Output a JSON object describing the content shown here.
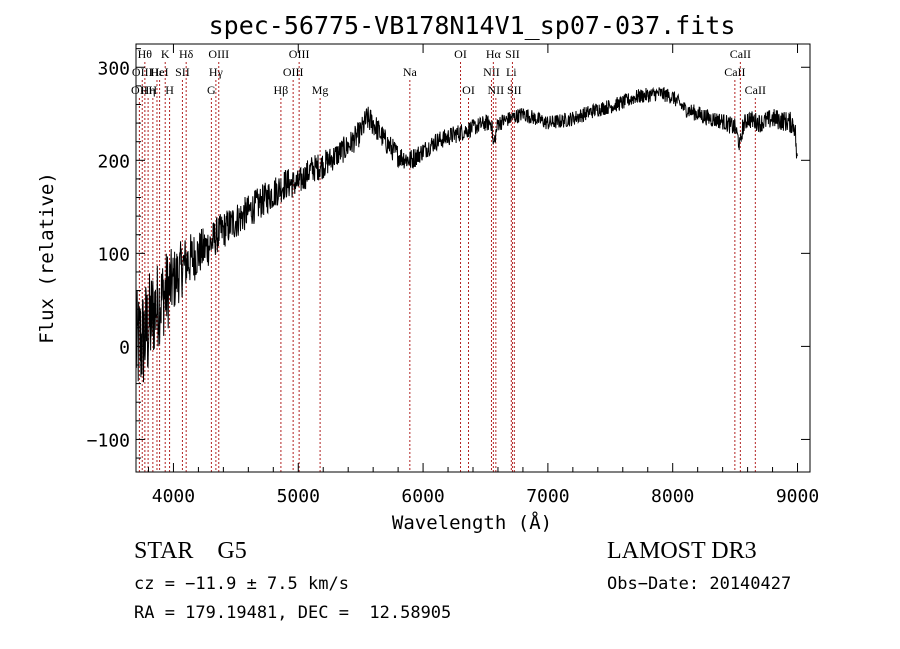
{
  "chart_data": {
    "type": "line",
    "title": "spec-56775-VB178N14V1_sp07-037.fits",
    "xlabel": "Wavelength (Å)",
    "ylabel": "Flux (relative)",
    "xlim": [
      3700,
      9100
    ],
    "ylim": [
      -135,
      325
    ],
    "x_ticks": [
      4000,
      5000,
      6000,
      7000,
      8000,
      9000
    ],
    "x_tick_labels": [
      "4000",
      "5000",
      "6000",
      "7000",
      "8000",
      "9000"
    ],
    "y_ticks": [
      -100,
      0,
      100,
      200,
      300
    ],
    "y_tick_labels": [
      "−100",
      "0",
      "100",
      "200",
      "300"
    ],
    "series": [
      {
        "name": "flux",
        "color": "#000000",
        "x": [
          3700,
          3750,
          3800,
          3850,
          3900,
          3950,
          4000,
          4050,
          4100,
          4150,
          4200,
          4250,
          4300,
          4350,
          4400,
          4450,
          4500,
          4600,
          4700,
          4800,
          4850,
          4900,
          5000,
          5100,
          5200,
          5300,
          5400,
          5500,
          5550,
          5600,
          5650,
          5700,
          5800,
          5900,
          6000,
          6100,
          6200,
          6300,
          6400,
          6500,
          6550,
          6563,
          6600,
          6700,
          6800,
          6900,
          7000,
          7100,
          7200,
          7300,
          7400,
          7500,
          7600,
          7700,
          7800,
          7900,
          8000,
          8100,
          8200,
          8300,
          8400,
          8500,
          8540,
          8560,
          8600,
          8700,
          8800,
          8900,
          8960,
          8980,
          9000
        ],
        "values": [
          0,
          5,
          20,
          40,
          50,
          60,
          70,
          80,
          90,
          95,
          100,
          105,
          110,
          120,
          125,
          130,
          135,
          145,
          155,
          165,
          170,
          175,
          175,
          190,
          195,
          205,
          215,
          230,
          245,
          240,
          230,
          220,
          205,
          200,
          210,
          220,
          225,
          230,
          235,
          240,
          240,
          215,
          240,
          245,
          250,
          245,
          240,
          242,
          245,
          250,
          255,
          258,
          262,
          268,
          270,
          272,
          268,
          255,
          250,
          245,
          242,
          235,
          215,
          235,
          245,
          240,
          245,
          242,
          240,
          235,
          190
        ],
        "noise": [
          60,
          60,
          60,
          50,
          45,
          45,
          35,
          32,
          30,
          28,
          25,
          24,
          22,
          20,
          20,
          20,
          20,
          18,
          18,
          18,
          17,
          17,
          15,
          15,
          15,
          14,
          14,
          14,
          14,
          14,
          13,
          13,
          12,
          12,
          10,
          10,
          10,
          10,
          9,
          9,
          9,
          8,
          9,
          8,
          8,
          8,
          8,
          8,
          8,
          8,
          8,
          8,
          8,
          8,
          8,
          8,
          8,
          8,
          9,
          9,
          9,
          10,
          10,
          10,
          10,
          10,
          11,
          11,
          12,
          12,
          15
        ]
      }
    ],
    "lines": [
      {
        "wave": 3727,
        "label": "OII",
        "row": 2
      },
      {
        "wave": 3750,
        "label": "OIII",
        "row": 1
      },
      {
        "wave": 3771,
        "label": "Hθ",
        "row": 0
      },
      {
        "wave": 3797,
        "label": "Hη",
        "row": 2
      },
      {
        "wave": 3835,
        "label": "H",
        "row": 2
      },
      {
        "wave": 3868,
        "label": "Hε",
        "row": 1
      },
      {
        "wave": 3889,
        "label": "HeI",
        "row": 1
      },
      {
        "wave": 3934,
        "label": "K",
        "row": 0
      },
      {
        "wave": 3969,
        "label": "H",
        "row": 2
      },
      {
        "wave": 4072,
        "label": "SII",
        "row": 1
      },
      {
        "wave": 4102,
        "label": "Hδ",
        "row": 0
      },
      {
        "wave": 4304,
        "label": "G",
        "row": 2
      },
      {
        "wave": 4340,
        "label": "Hγ",
        "row": 1
      },
      {
        "wave": 4363,
        "label": "OIII",
        "row": 0
      },
      {
        "wave": 4861,
        "label": "Hβ",
        "row": 2
      },
      {
        "wave": 4959,
        "label": "OIII",
        "row": 1
      },
      {
        "wave": 5007,
        "label": "OIII",
        "row": 0
      },
      {
        "wave": 5175,
        "label": "Mg",
        "row": 2
      },
      {
        "wave": 5894,
        "label": "Na",
        "row": 1
      },
      {
        "wave": 6300,
        "label": "OI",
        "row": 0
      },
      {
        "wave": 6364,
        "label": "OI",
        "row": 2
      },
      {
        "wave": 6548,
        "label": "NII",
        "row": 1
      },
      {
        "wave": 6563,
        "label": "Hα",
        "row": 0
      },
      {
        "wave": 6583,
        "label": "NII",
        "row": 2
      },
      {
        "wave": 6707,
        "label": "Li",
        "row": 1
      },
      {
        "wave": 6716,
        "label": "SII",
        "row": 0
      },
      {
        "wave": 6731,
        "label": "SII",
        "row": 2
      },
      {
        "wave": 8498,
        "label": "CaII",
        "row": 1
      },
      {
        "wave": 8542,
        "label": "CaII",
        "row": 0
      },
      {
        "wave": 8662,
        "label": "CaII",
        "row": 2
      }
    ],
    "line_color": "#b22222",
    "grid": false,
    "legend": "none"
  },
  "info": {
    "classification": "STAR    G5",
    "survey": "LAMOST DR3",
    "redshift": "cz = −11.9 ± 7.5 km/s",
    "obs_date": "Obs−Date: 20140427",
    "coords": "RA = 179.19481, DEC =  12.58905"
  }
}
